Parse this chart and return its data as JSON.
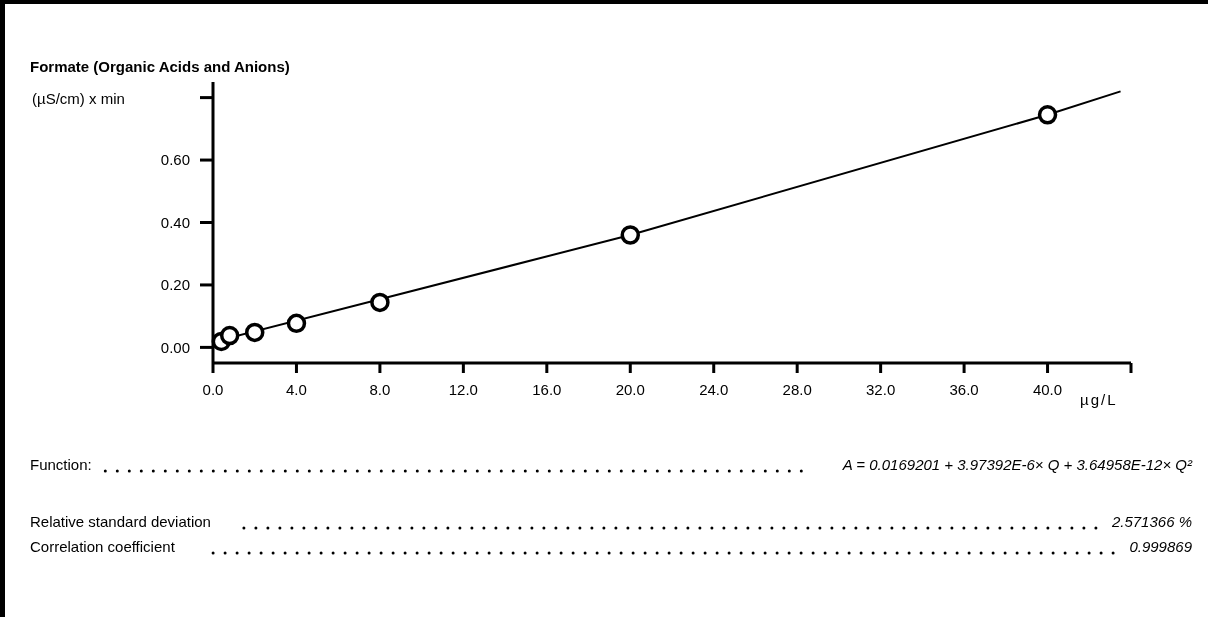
{
  "chart_data": {
    "type": "scatter",
    "title": "Formate (Organic Acids and Anions)",
    "ylabel": "(µS/cm) x min",
    "xlabel": "µg/L",
    "xlim": [
      0,
      44
    ],
    "xticks": [
      {
        "value": 0,
        "label": "0.0"
      },
      {
        "value": 4,
        "label": "4.0"
      },
      {
        "value": 8,
        "label": "8.0"
      },
      {
        "value": 12,
        "label": "12.0"
      },
      {
        "value": 16,
        "label": "16.0"
      },
      {
        "value": 20,
        "label": "20.0"
      },
      {
        "value": 24,
        "label": "24.0"
      },
      {
        "value": 28,
        "label": "28.0"
      },
      {
        "value": 32,
        "label": "32.0"
      },
      {
        "value": 36,
        "label": "36.0"
      },
      {
        "value": 40,
        "label": "40.0"
      },
      {
        "value": 44,
        "label": null
      }
    ],
    "ylim": [
      -0.05,
      0.85
    ],
    "yticks": [
      {
        "value": 0,
        "label": "0.00"
      },
      {
        "value": 0.2,
        "label": "0.20"
      },
      {
        "value": 0.4,
        "label": "0.40"
      },
      {
        "value": 0.6,
        "label": "0.60"
      },
      {
        "value": 0.8,
        "label": null
      }
    ],
    "grid": false,
    "marker": "circle",
    "series": [
      {
        "type": "line",
        "color": "#000000",
        "marker": "none",
        "x": [
          0,
          20,
          40,
          43.5
        ],
        "values": [
          0.017,
          0.36,
          0.745,
          0.82
        ]
      },
      {
        "color": "#000000",
        "x": [
          0.4,
          0.8,
          2,
          4,
          8,
          20,
          40
        ],
        "values": [
          0.019,
          0.038,
          0.048,
          0.077,
          0.144,
          0.36,
          0.745
        ]
      }
    ],
    "annotations": [
      "Function:",
      "A = 0.0169201 + 3.97392E-6× Q + 3.64958E-12× Q²",
      "Relative standard deviation",
      "2.571366 %",
      "Correlation coefficient",
      "0.999869"
    ]
  }
}
